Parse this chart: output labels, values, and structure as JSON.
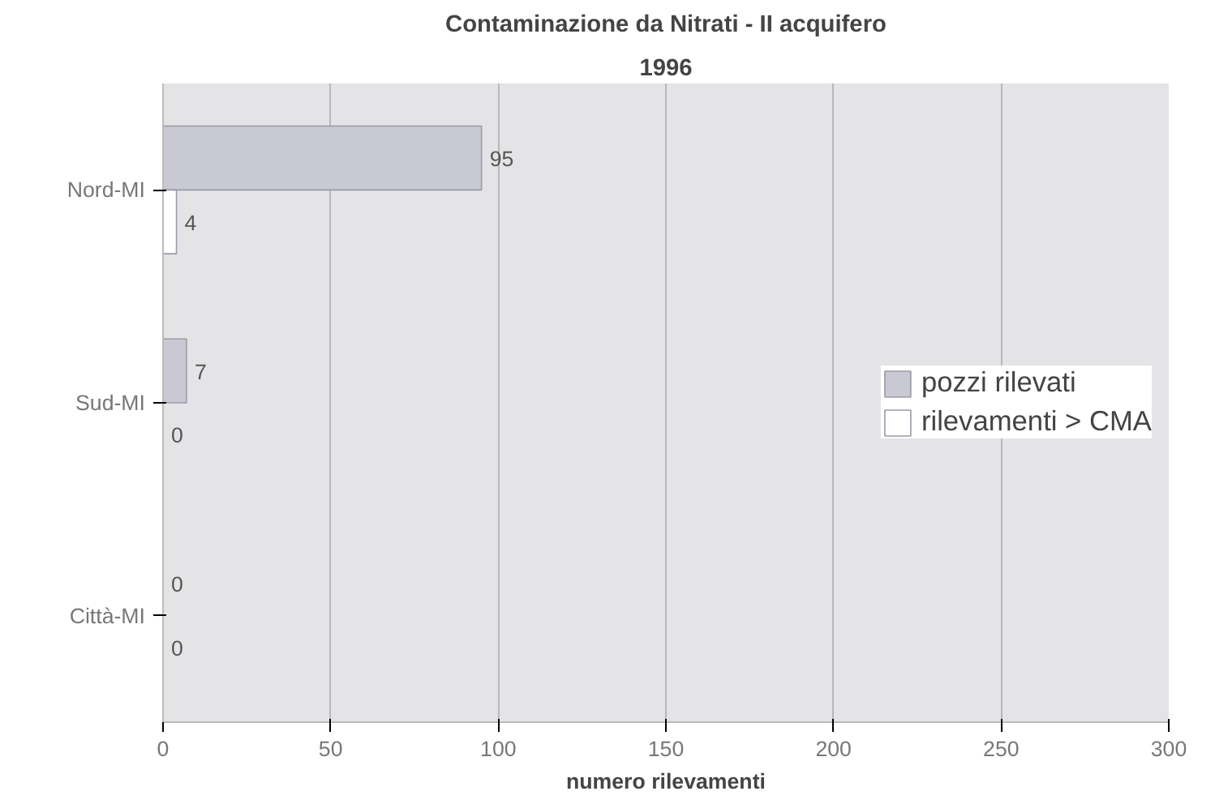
{
  "chart_data": {
    "type": "bar",
    "orientation": "horizontal",
    "title": "Contaminazione da Nitrati - II acquifero",
    "subtitle": "1996",
    "xlabel": "numero rilevamenti",
    "categories": [
      "Nord-MI",
      "Sud-MI",
      "Città-MI"
    ],
    "series": [
      {
        "name": "pozzi rilevati",
        "color": "#c9c9d3",
        "values": [
          95,
          7,
          0
        ]
      },
      {
        "name": "rilevamenti > CMA",
        "color": "#ffffff",
        "values": [
          4,
          0,
          0
        ]
      }
    ],
    "xlim": [
      0,
      300
    ],
    "xticks": [
      0,
      50,
      100,
      150,
      200,
      250,
      300
    ],
    "grid": "x",
    "legend": "right",
    "data_labels": true
  }
}
